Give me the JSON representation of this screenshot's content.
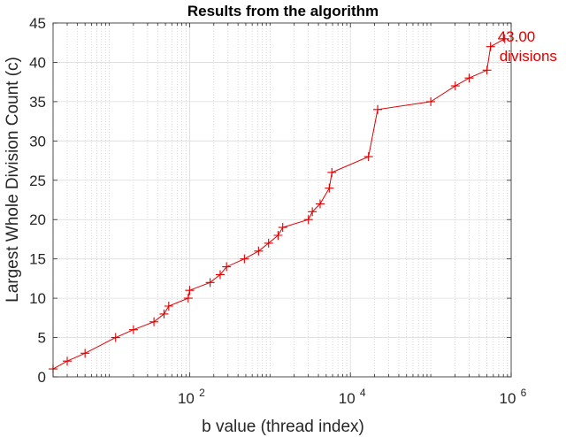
{
  "chart_data": {
    "type": "line",
    "title": "Results from the algorithm",
    "xlabel": "b value (thread index)",
    "ylabel": "Largest Whole Division Count (c)",
    "xscale": "log",
    "xlim": [
      2,
      1000000
    ],
    "ylim": [
      0,
      45
    ],
    "xticks": [
      {
        "value": 100,
        "base": "10",
        "exp": "2"
      },
      {
        "value": 10000,
        "base": "10",
        "exp": "4"
      },
      {
        "value": 1000000,
        "base": "10",
        "exp": "6"
      }
    ],
    "yticks": [
      0,
      5,
      10,
      15,
      20,
      25,
      30,
      35,
      40,
      45
    ],
    "grid": true,
    "minor_grid": true,
    "series": [
      {
        "color": "#e00000",
        "marker": "+",
        "x": [
          2,
          3,
          5,
          12,
          20,
          36,
          48,
          55,
          96,
          100,
          180,
          240,
          288,
          480,
          720,
          960,
          1260,
          1440,
          3000,
          3360,
          4200,
          5460,
          5880,
          16800,
          21840,
          100000,
          201600,
          300000,
          500000,
          554400,
          831600
        ],
        "y": [
          1,
          2,
          3,
          5,
          6,
          7,
          8,
          9,
          10,
          11,
          12,
          13,
          14,
          15,
          16,
          17,
          18,
          19,
          20,
          21,
          22,
          24,
          26,
          28,
          34,
          35,
          37,
          38,
          39,
          42,
          43
        ]
      }
    ],
    "annotation": {
      "text_line1": "43.00",
      "text_line2": "divisions",
      "x": 831600,
      "y": 43,
      "color": "#e00000"
    }
  }
}
